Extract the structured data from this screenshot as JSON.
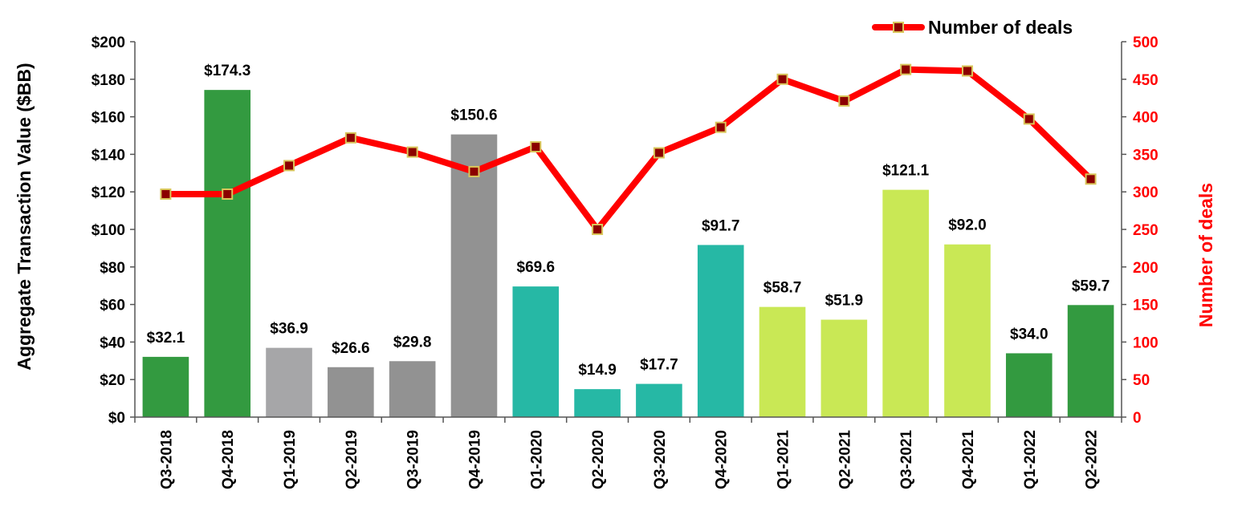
{
  "chart_data": {
    "type": "bar",
    "categories": [
      "Q3-2018",
      "Q4-2018",
      "Q1-2019",
      "Q2-2019",
      "Q3-2019",
      "Q4-2019",
      "Q1-2020",
      "Q2-2020",
      "Q3-2020",
      "Q4-2020",
      "Q1-2021",
      "Q2-2021",
      "Q3-2021",
      "Q4-2021",
      "Q1-2022",
      "Q2-2022"
    ],
    "series": [
      {
        "type": "bar",
        "axis": "left",
        "values": [
          32.1,
          174.3,
          36.9,
          26.6,
          29.8,
          150.6,
          69.6,
          14.9,
          17.7,
          91.7,
          58.7,
          51.9,
          121.1,
          92.0,
          34.0,
          59.7
        ],
        "labels": [
          "$32.1",
          "$174.3",
          "$36.9",
          "$26.6",
          "$29.8",
          "$150.6",
          "$69.6",
          "$14.9",
          "$17.7",
          "$91.7",
          "$58.7",
          "$51.9",
          "$121.1",
          "$92.0",
          "$34.0",
          "$59.7"
        ],
        "colors": [
          "#339a40",
          "#339a40",
          "#a6a6a8",
          "#929292",
          "#929292",
          "#929292",
          "#26b8a5",
          "#26b8a5",
          "#26b8a5",
          "#26b8a5",
          "#c9e855",
          "#c9e855",
          "#c9e855",
          "#c9e855",
          "#339a40",
          "#339a40"
        ]
      },
      {
        "name": "Number of deals",
        "type": "line",
        "axis": "right",
        "values": [
          297,
          297,
          335,
          372,
          353,
          327,
          360,
          250,
          352,
          386,
          450,
          421,
          463,
          461,
          397,
          317
        ],
        "line_color": "#ff0000",
        "marker_color": "#8b0000",
        "marker_border": "#d9c65a"
      }
    ],
    "ylabel": "Aggregate Transaction Value ($BB)",
    "y2label": "Number of deals",
    "ylim": [
      0,
      200
    ],
    "y2lim": [
      0,
      500
    ],
    "yticks": [
      "$0",
      "$20",
      "$40",
      "$60",
      "$80",
      "$100",
      "$120",
      "$140",
      "$160",
      "$180",
      "$200"
    ],
    "y2ticks": [
      "0",
      "50",
      "100",
      "150",
      "200",
      "250",
      "300",
      "350",
      "400",
      "450",
      "500"
    ],
    "legend": {
      "position": "top-right",
      "entries": [
        "Number of deals"
      ]
    },
    "grid": false,
    "axis_colors": {
      "left": "#000000",
      "right": "#ff0000"
    }
  }
}
